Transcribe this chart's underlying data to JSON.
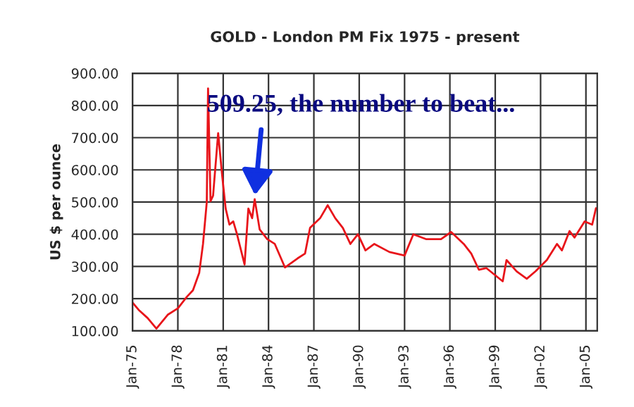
{
  "chart_data": {
    "type": "line",
    "title": "GOLD - London PM Fix 1975 - present",
    "ylabel": "US $ per ounce",
    "x": [
      "1975-01",
      "1975-06",
      "1976-01",
      "1976-08",
      "1977-05",
      "1978-01",
      "1978-08",
      "1979-01",
      "1979-06",
      "1979-09",
      "1979-12",
      "1980-01",
      "1980-03",
      "1980-05",
      "1980-09",
      "1980-12",
      "1981-03",
      "1981-06",
      "1981-09",
      "1981-12",
      "1982-06",
      "1982-09",
      "1982-12",
      "1983-02",
      "1983-06",
      "1983-12",
      "1984-06",
      "1985-02",
      "1985-12",
      "1986-06",
      "1986-10",
      "1987-06",
      "1987-12",
      "1988-06",
      "1988-12",
      "1989-06",
      "1989-12",
      "1990-06",
      "1991-01",
      "1992-01",
      "1993-01",
      "1993-08",
      "1994-06",
      "1995-06",
      "1996-02",
      "1996-12",
      "1997-06",
      "1997-12",
      "1998-06",
      "1999-07",
      "1999-10",
      "2000-06",
      "2001-02",
      "2001-09",
      "2002-06",
      "2003-02",
      "2003-06",
      "2003-12",
      "2004-04",
      "2004-12",
      "2005-06",
      "2005-09"
    ],
    "series": [
      {
        "color": "#e8141a",
        "values": [
          188,
          165,
          140,
          107,
          150,
          170,
          205,
          226,
          280,
          370,
          500,
          853,
          503,
          520,
          714,
          590,
          480,
          430,
          440,
          400,
          306,
          480,
          450,
          509,
          415,
          385,
          370,
          297,
          325,
          340,
          420,
          450,
          490,
          450,
          420,
          370,
          400,
          350,
          370,
          345,
          334,
          400,
          385,
          385,
          407,
          370,
          340,
          290,
          295,
          254,
          320,
          285,
          262,
          285,
          320,
          370,
          350,
          410,
          390,
          440,
          430,
          481
        ]
      }
    ],
    "xlim": [
      "1975-01",
      "2005-10"
    ],
    "xticks": [
      {
        "value": "1975-01",
        "label": "Jan-75"
      },
      {
        "value": "1978-01",
        "label": "Jan-78"
      },
      {
        "value": "1981-01",
        "label": "Jan-81"
      },
      {
        "value": "1984-01",
        "label": "Jan-84"
      },
      {
        "value": "1987-01",
        "label": "Jan-87"
      },
      {
        "value": "1990-01",
        "label": "Jan-90"
      },
      {
        "value": "1993-01",
        "label": "Jan-93"
      },
      {
        "value": "1996-01",
        "label": "Jan-96"
      },
      {
        "value": "1999-01",
        "label": "Jan-99"
      },
      {
        "value": "2002-01",
        "label": "Jan-02"
      },
      {
        "value": "2005-01",
        "label": "Jan-05"
      }
    ],
    "ylim": [
      100,
      900
    ],
    "yticks": [
      {
        "value": 100,
        "label": "100.00"
      },
      {
        "value": 200,
        "label": "200.00"
      },
      {
        "value": 300,
        "label": "300.00"
      },
      {
        "value": 400,
        "label": "400.00"
      },
      {
        "value": 500,
        "label": "500.00"
      },
      {
        "value": 600,
        "label": "600.00"
      },
      {
        "value": 700,
        "label": "700.00"
      },
      {
        "value": 800,
        "label": "800.00"
      },
      {
        "value": 900,
        "label": "900.00"
      }
    ],
    "grid": true,
    "annotations": [
      {
        "text": "509.25, the number to beat...",
        "x": "1983-02",
        "y": 509.25
      }
    ]
  }
}
